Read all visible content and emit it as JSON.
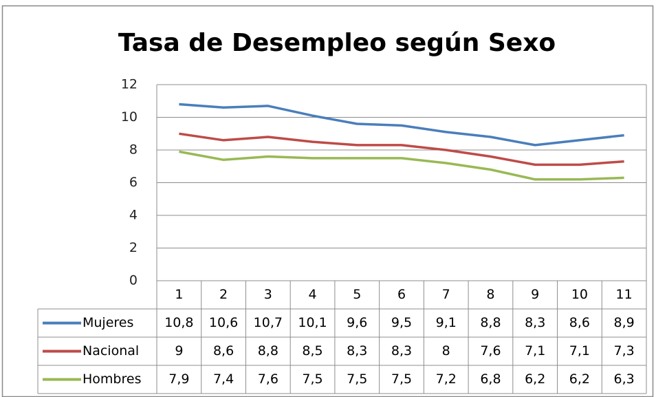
{
  "chart_data": {
    "type": "line",
    "title": "Tasa de Desempleo según Sexo",
    "categories": [
      "1",
      "2",
      "3",
      "4",
      "5",
      "6",
      "7",
      "8",
      "9",
      "10",
      "11"
    ],
    "series": [
      {
        "name": "Mujeres",
        "color": "#4a7ebb",
        "values": [
          10.8,
          10.6,
          10.7,
          10.1,
          9.6,
          9.5,
          9.1,
          8.8,
          8.3,
          8.6,
          8.9
        ],
        "value_labels": [
          "10,8",
          "10,6",
          "10,7",
          "10,1",
          "9,6",
          "9,5",
          "9,1",
          "8,8",
          "8,3",
          "8,6",
          "8,9"
        ]
      },
      {
        "name": "Nacional",
        "color": "#be4b48",
        "values": [
          9,
          8.6,
          8.8,
          8.5,
          8.3,
          8.3,
          8,
          7.6,
          7.1,
          7.1,
          7.3
        ],
        "value_labels": [
          "9",
          "8,6",
          "8,8",
          "8,5",
          "8,3",
          "8,3",
          "8",
          "7,6",
          "7,1",
          "7,1",
          "7,3"
        ]
      },
      {
        "name": "Hombres",
        "color": "#98b954",
        "values": [
          7.9,
          7.4,
          7.6,
          7.5,
          7.5,
          7.5,
          7.2,
          6.8,
          6.2,
          6.2,
          6.3
        ],
        "value_labels": [
          "7,9",
          "7,4",
          "7,6",
          "7,5",
          "7,5",
          "7,5",
          "7,2",
          "6,8",
          "6,2",
          "6,2",
          "6,3"
        ]
      }
    ],
    "ylim": [
      0,
      12
    ],
    "yticks": [
      0,
      2,
      4,
      6,
      8,
      10,
      12
    ],
    "grid": true
  }
}
